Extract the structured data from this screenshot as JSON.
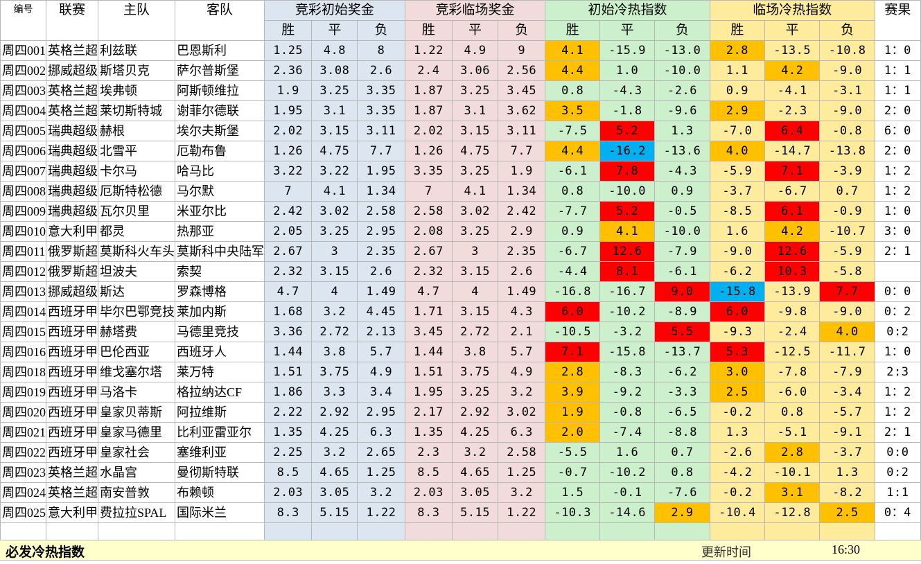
{
  "headers": {
    "id": "编号",
    "league": "联赛",
    "home": "主队",
    "away": "客队",
    "group_initial_odds": "竞彩初始奖金",
    "group_final_odds": "竞彩临场奖金",
    "group_initial_index": "初始冷热指数",
    "group_final_index": "临场冷热指数",
    "result": "赛果",
    "sub": [
      "胜",
      "平",
      "负"
    ]
  },
  "rows": [
    {
      "id": "周四001",
      "league": "英格兰超",
      "home": "利兹联",
      "away": "巴恩斯利",
      "io": [
        "1.25",
        "4.8",
        "8"
      ],
      "fo": [
        "1.22",
        "4.9",
        "9"
      ],
      "ii": [
        "4.1",
        "-15.9",
        "-13.0"
      ],
      "fi": [
        "2.8",
        "-13.5",
        "-10.8"
      ],
      "result": "1：0",
      "ic": [
        "o",
        "",
        ""
      ],
      "fc": [
        "o",
        "",
        ""
      ]
    },
    {
      "id": "周四002",
      "league": "挪威超级",
      "home": "斯塔贝克",
      "away": "萨尔普斯堡",
      "io": [
        "2.36",
        "3.08",
        "2.6"
      ],
      "fo": [
        "2.4",
        "3.06",
        "2.56"
      ],
      "ii": [
        "4.4",
        "1.0",
        "-10.0"
      ],
      "fi": [
        "1.1",
        "4.2",
        "-9.0"
      ],
      "result": "1：1",
      "ic": [
        "o",
        "",
        ""
      ],
      "fc": [
        "",
        "o",
        ""
      ]
    },
    {
      "id": "周四003",
      "league": "英格兰超",
      "home": "埃弗顿",
      "away": "阿斯顿维拉",
      "io": [
        "1.9",
        "3.25",
        "3.35"
      ],
      "fo": [
        "1.87",
        "3.25",
        "3.45"
      ],
      "ii": [
        "0.8",
        "-4.3",
        "-2.6"
      ],
      "fi": [
        "0.9",
        "-4.1",
        "-3.1"
      ],
      "result": "1：1",
      "ic": [
        "",
        "",
        ""
      ],
      "fc": [
        "",
        "",
        ""
      ]
    },
    {
      "id": "周四004",
      "league": "英格兰超",
      "home": "莱切斯特城",
      "away": "谢菲尔德联",
      "io": [
        "1.95",
        "3.1",
        "3.35"
      ],
      "fo": [
        "1.87",
        "3.1",
        "3.62"
      ],
      "ii": [
        "3.5",
        "-1.8",
        "-9.6"
      ],
      "fi": [
        "2.9",
        "-2.3",
        "-9.0"
      ],
      "result": "2：0",
      "ic": [
        "o",
        "",
        ""
      ],
      "fc": [
        "o",
        "",
        ""
      ]
    },
    {
      "id": "周四005",
      "league": "瑞典超级",
      "home": "赫根",
      "away": "埃尔夫斯堡",
      "io": [
        "2.02",
        "3.15",
        "3.11"
      ],
      "fo": [
        "2.02",
        "3.15",
        "3.11"
      ],
      "ii": [
        "-7.5",
        "5.2",
        "1.3"
      ],
      "fi": [
        "-7.0",
        "6.4",
        "-0.8"
      ],
      "result": "6：0",
      "ic": [
        "",
        "r",
        ""
      ],
      "fc": [
        "",
        "r",
        ""
      ]
    },
    {
      "id": "周四006",
      "league": "瑞典超级",
      "home": "北雪平",
      "away": "厄勒布鲁",
      "io": [
        "1.26",
        "4.75",
        "7.7"
      ],
      "fo": [
        "1.26",
        "4.75",
        "7.7"
      ],
      "ii": [
        "4.4",
        "-16.2",
        "-13.6"
      ],
      "fi": [
        "4.0",
        "-14.7",
        "-13.8"
      ],
      "result": "2：0",
      "ic": [
        "o",
        "b",
        ""
      ],
      "fc": [
        "o",
        "",
        ""
      ]
    },
    {
      "id": "周四007",
      "league": "瑞典超级",
      "home": "卡尔马",
      "away": "哈马比",
      "io": [
        "3.22",
        "3.22",
        "1.95"
      ],
      "fo": [
        "3.35",
        "3.25",
        "1.9"
      ],
      "ii": [
        "-6.1",
        "7.8",
        "-4.3"
      ],
      "fi": [
        "-5.9",
        "7.1",
        "-3.9"
      ],
      "result": "1：2",
      "ic": [
        "",
        "r",
        ""
      ],
      "fc": [
        "",
        "r",
        ""
      ]
    },
    {
      "id": "周四008",
      "league": "瑞典超级",
      "home": "厄斯特松德",
      "away": "马尔默",
      "io": [
        "7",
        "4.1",
        "1.34"
      ],
      "fo": [
        "7",
        "4.1",
        "1.34"
      ],
      "ii": [
        "0.8",
        "-10.0",
        "0.9"
      ],
      "fi": [
        "-3.7",
        "-6.7",
        "0.7"
      ],
      "result": "1：2",
      "ic": [
        "",
        "",
        ""
      ],
      "fc": [
        "",
        "",
        ""
      ]
    },
    {
      "id": "周四009",
      "league": "瑞典超级",
      "home": "瓦尔贝里",
      "away": "米亚尔比",
      "io": [
        "2.42",
        "3.02",
        "2.58"
      ],
      "fo": [
        "2.58",
        "3.02",
        "2.42"
      ],
      "ii": [
        "-7.7",
        "5.2",
        "-0.5"
      ],
      "fi": [
        "-8.5",
        "6.1",
        "-0.9"
      ],
      "result": "1：0",
      "ic": [
        "",
        "r",
        ""
      ],
      "fc": [
        "",
        "r",
        ""
      ]
    },
    {
      "id": "周四010",
      "league": "意大利甲",
      "home": "都灵",
      "away": "热那亚",
      "io": [
        "2.05",
        "3.25",
        "2.95"
      ],
      "fo": [
        "2.08",
        "3.25",
        "2.9"
      ],
      "ii": [
        "0.9",
        "4.1",
        "-10.0"
      ],
      "fi": [
        "1.6",
        "4.2",
        "-10.7"
      ],
      "result": "3：0",
      "ic": [
        "",
        "o",
        ""
      ],
      "fc": [
        "",
        "o",
        ""
      ]
    },
    {
      "id": "周四011",
      "league": "俄罗斯超",
      "home": "莫斯科火车头",
      "away": "莫斯科中央陆军",
      "io": [
        "2.67",
        "3",
        "2.35"
      ],
      "fo": [
        "2.67",
        "3",
        "2.35"
      ],
      "ii": [
        "-6.7",
        "12.6",
        "-7.9"
      ],
      "fi": [
        "-9.0",
        "12.6",
        "-5.9"
      ],
      "result": "2：1",
      "ic": [
        "",
        "r",
        ""
      ],
      "fc": [
        "",
        "r",
        ""
      ]
    },
    {
      "id": "周四012",
      "league": "俄罗斯超",
      "home": "坦波夫",
      "away": "索契",
      "io": [
        "2.32",
        "3.15",
        "2.6"
      ],
      "fo": [
        "2.32",
        "3.15",
        "2.6"
      ],
      "ii": [
        "-4.4",
        "8.1",
        "-6.1"
      ],
      "fi": [
        "-6.2",
        "10.3",
        "-5.8"
      ],
      "result": "",
      "ic": [
        "",
        "r",
        ""
      ],
      "fc": [
        "",
        "r",
        ""
      ]
    },
    {
      "id": "周四013",
      "league": "挪威超级",
      "home": "斯达",
      "away": "罗森博格",
      "io": [
        "4.7",
        "4",
        "1.49"
      ],
      "fo": [
        "4.7",
        "4",
        "1.49"
      ],
      "ii": [
        "-16.8",
        "-16.7",
        "9.0"
      ],
      "fi": [
        "-15.8",
        "-13.9",
        "7.7"
      ],
      "result": "0：0",
      "ic": [
        "",
        "",
        "r"
      ],
      "fc": [
        "b",
        "",
        "r"
      ]
    },
    {
      "id": "周四014",
      "league": "西班牙甲",
      "home": "毕尔巴鄂竞技",
      "away": "莱加内斯",
      "io": [
        "1.68",
        "3.2",
        "4.45"
      ],
      "fo": [
        "1.71",
        "3.15",
        "4.3"
      ],
      "ii": [
        "6.0",
        "-10.2",
        "-8.9"
      ],
      "fi": [
        "6.0",
        "-9.8",
        "-9.0"
      ],
      "result": "0：2",
      "ic": [
        "r",
        "",
        ""
      ],
      "fc": [
        "r",
        "",
        ""
      ]
    },
    {
      "id": "周四015",
      "league": "西班牙甲",
      "home": "赫塔费",
      "away": "马德里竞技",
      "io": [
        "3.36",
        "2.72",
        "2.13"
      ],
      "fo": [
        "3.45",
        "2.72",
        "2.1"
      ],
      "ii": [
        "-10.5",
        "-3.2",
        "5.5"
      ],
      "fi": [
        "-9.3",
        "-2.4",
        "4.0"
      ],
      "result": "0:2",
      "ic": [
        "",
        "",
        "r"
      ],
      "fc": [
        "",
        "",
        "o"
      ]
    },
    {
      "id": "周四016",
      "league": "西班牙甲",
      "home": "巴伦西亚",
      "away": "西班牙人",
      "io": [
        "1.44",
        "3.8",
        "5.7"
      ],
      "fo": [
        "1.44",
        "3.8",
        "5.7"
      ],
      "ii": [
        "7.1",
        "-15.8",
        "-13.7"
      ],
      "fi": [
        "5.3",
        "-12.5",
        "-11.7"
      ],
      "result": "1：0",
      "ic": [
        "r",
        "",
        ""
      ],
      "fc": [
        "r",
        "",
        ""
      ]
    },
    {
      "id": "周四018",
      "league": "西班牙甲",
      "home": "维戈塞尔塔",
      "away": "莱万特",
      "io": [
        "1.51",
        "3.75",
        "4.9"
      ],
      "fo": [
        "1.51",
        "3.75",
        "4.9"
      ],
      "ii": [
        "2.8",
        "-8.3",
        "-6.2"
      ],
      "fi": [
        "3.0",
        "-7.8",
        "-7.9"
      ],
      "result": "2:3",
      "ic": [
        "o",
        "",
        ""
      ],
      "fc": [
        "o",
        "",
        ""
      ]
    },
    {
      "id": "周四019",
      "league": "西班牙甲",
      "home": "马洛卡",
      "away": "格拉纳达CF",
      "io": [
        "1.86",
        "3.3",
        "3.4"
      ],
      "fo": [
        "1.95",
        "3.25",
        "3.2"
      ],
      "ii": [
        "3.9",
        "-9.2",
        "-3.3"
      ],
      "fi": [
        "2.5",
        "-6.0",
        "-3.4"
      ],
      "result": "1：2",
      "ic": [
        "o",
        "",
        ""
      ],
      "fc": [
        "o",
        "",
        ""
      ]
    },
    {
      "id": "周四020",
      "league": "西班牙甲",
      "home": "皇家贝蒂斯",
      "away": "阿拉维斯",
      "io": [
        "2.22",
        "2.92",
        "2.95"
      ],
      "fo": [
        "2.17",
        "2.92",
        "3.02"
      ],
      "ii": [
        "1.9",
        "-0.8",
        "-6.5"
      ],
      "fi": [
        "-0.2",
        "0.8",
        "-5.7"
      ],
      "result": "1：2",
      "ic": [
        "o",
        "",
        ""
      ],
      "fc": [
        "",
        "",
        ""
      ]
    },
    {
      "id": "周四021",
      "league": "西班牙甲",
      "home": "皇家马德里",
      "away": "比利亚雷亚尔",
      "io": [
        "1.35",
        "4.25",
        "6.3"
      ],
      "fo": [
        "1.35",
        "4.25",
        "6.3"
      ],
      "ii": [
        "2.0",
        "-7.4",
        "-8.8"
      ],
      "fi": [
        "1.3",
        "-5.1",
        "-9.1"
      ],
      "result": "2：1",
      "ic": [
        "o",
        "",
        ""
      ],
      "fc": [
        "",
        "",
        ""
      ]
    },
    {
      "id": "周四022",
      "league": "西班牙甲",
      "home": "皇家社会",
      "away": "塞维利亚",
      "io": [
        "2.25",
        "3.2",
        "2.65"
      ],
      "fo": [
        "2.3",
        "3.2",
        "2.58"
      ],
      "ii": [
        "-5.5",
        "1.6",
        "0.7"
      ],
      "fi": [
        "-2.6",
        "2.8",
        "-3.7"
      ],
      "result": "0:0",
      "ic": [
        "",
        "",
        ""
      ],
      "fc": [
        "",
        "o",
        ""
      ]
    },
    {
      "id": "周四023",
      "league": "英格兰超",
      "home": "水晶宫",
      "away": "曼彻斯特联",
      "io": [
        "8.5",
        "4.65",
        "1.25"
      ],
      "fo": [
        "8.5",
        "4.65",
        "1.25"
      ],
      "ii": [
        "-0.7",
        "-10.2",
        "0.8"
      ],
      "fi": [
        "-4.2",
        "-10.1",
        "1.3"
      ],
      "result": "0:2",
      "ic": [
        "",
        "",
        ""
      ],
      "fc": [
        "",
        "",
        ""
      ]
    },
    {
      "id": "周四024",
      "league": "英格兰超",
      "home": "南安普敦",
      "away": "布赖顿",
      "io": [
        "2.03",
        "3.05",
        "3.2"
      ],
      "fo": [
        "2.03",
        "3.05",
        "3.2"
      ],
      "ii": [
        "1.5",
        "-0.1",
        "-7.6"
      ],
      "fi": [
        "-0.2",
        "3.1",
        "-8.2"
      ],
      "result": "1:1",
      "ic": [
        "",
        "",
        ""
      ],
      "fc": [
        "",
        "o",
        ""
      ]
    },
    {
      "id": "周四025",
      "league": "意大利甲",
      "home": "费拉拉SPAL",
      "away": "国际米兰",
      "io": [
        "8.3",
        "5.15",
        "1.22"
      ],
      "fo": [
        "8.3",
        "5.15",
        "1.22"
      ],
      "ii": [
        "-10.3",
        "-14.6",
        "2.9"
      ],
      "fi": [
        "-10.4",
        "-12.8",
        "2.5"
      ],
      "result": "0：4",
      "ic": [
        "",
        "",
        "o"
      ],
      "fc": [
        "",
        "",
        "o"
      ]
    }
  ],
  "footer": {
    "title": "必发冷热指数",
    "update_label": "更新时间",
    "update_time": "16:30"
  },
  "colors": {
    "orange": "#ffc000",
    "red": "#ff0000",
    "blue": "#00b0f0",
    "odds_initial_bg": "#dce6f1",
    "odds_final_bg": "#f2dcdb",
    "index_initial_bg": "#ccf0cc",
    "index_final_bg": "#ffeb9c",
    "footer_bg": "#ffffcc"
  }
}
